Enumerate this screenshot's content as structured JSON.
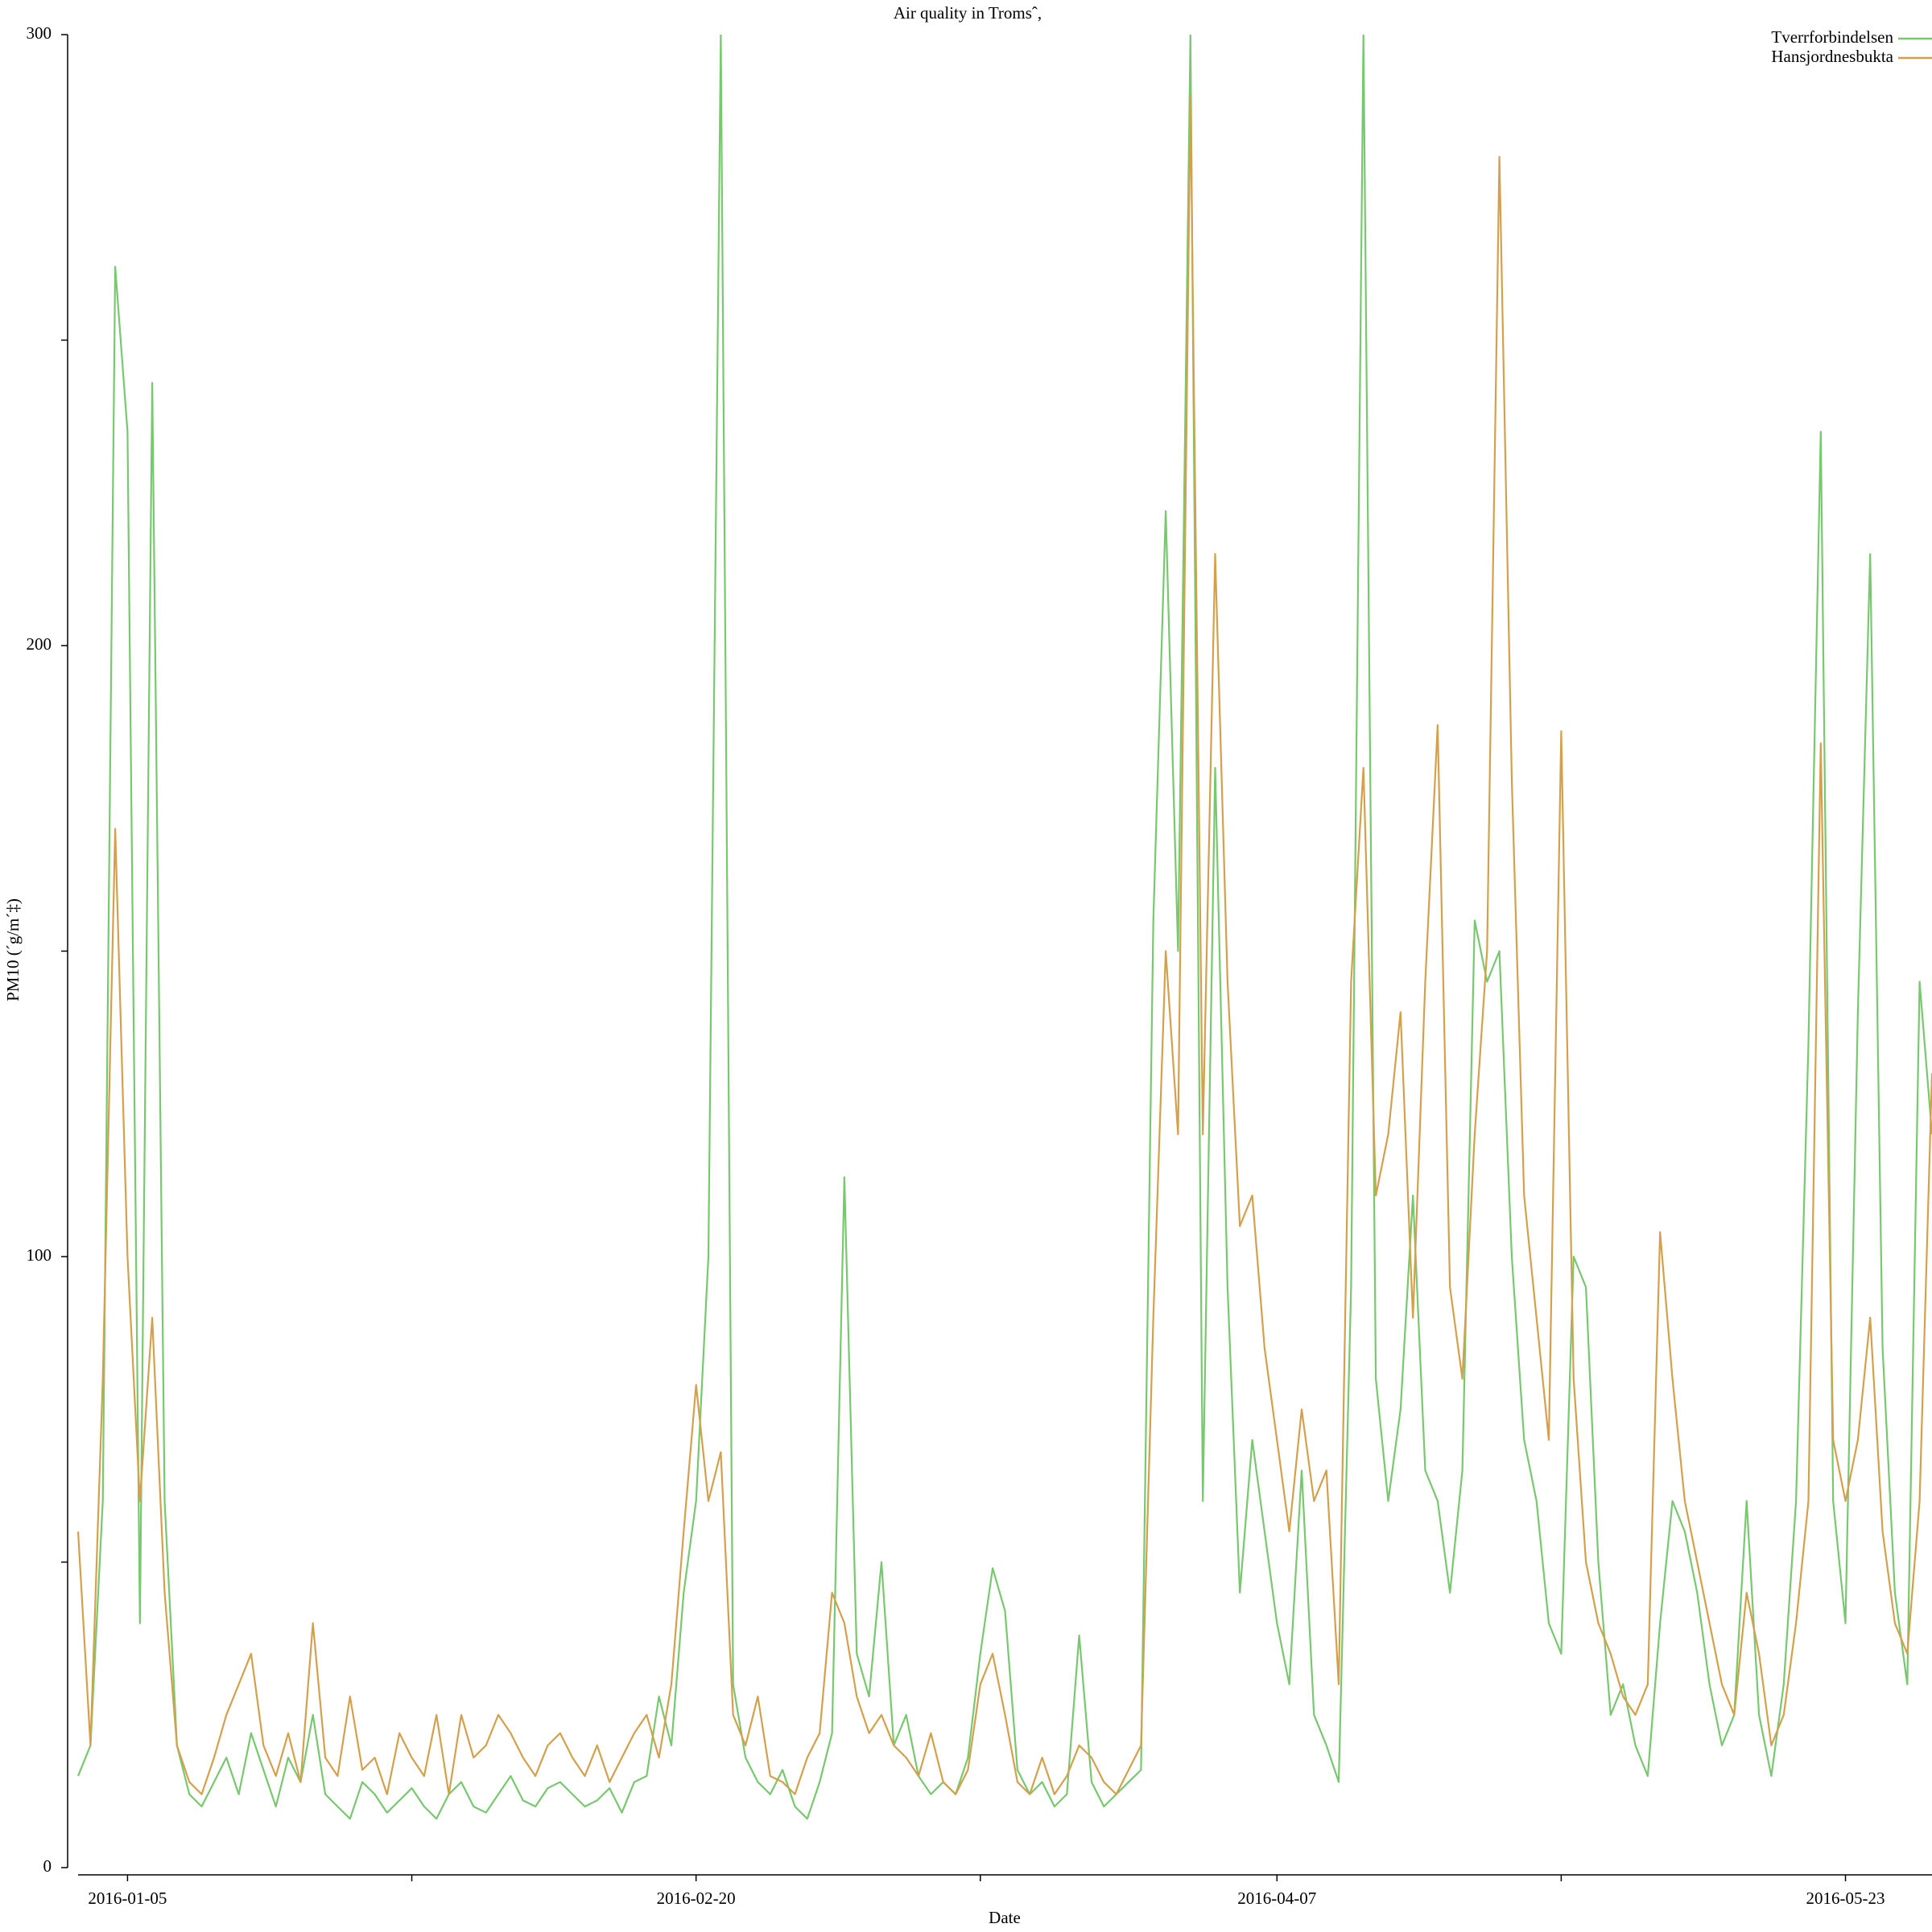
{
  "chart_data": {
    "type": "line",
    "title": "Air quality in Tromsˆ,",
    "x_label": "Date",
    "y_label": "PM10 (´g/m´‡)",
    "legend": "top-right",
    "xlim": [
      "2016-01-01",
      "2016-05-30"
    ],
    "ylim": [
      0,
      300
    ],
    "yticks": [
      0,
      {
        "value": 50,
        "label": null
      },
      100,
      {
        "value": 150,
        "label": null
      },
      200,
      {
        "value": 250,
        "label": null
      },
      300
    ],
    "xticks": [
      "2016-01-05",
      {
        "value": "2016-01-28",
        "label": null
      },
      "2016-02-20",
      {
        "value": "2016-03-14",
        "label": null
      },
      "2016-04-07",
      {
        "value": "2016-04-30",
        "label": null
      },
      "2016-05-23"
    ],
    "x": [
      "2016-01-01",
      "2016-01-02",
      "2016-01-03",
      "2016-01-04",
      "2016-01-05",
      "2016-01-06",
      "2016-01-07",
      "2016-01-08",
      "2016-01-09",
      "2016-01-10",
      "2016-01-11",
      "2016-01-12",
      "2016-01-13",
      "2016-01-14",
      "2016-01-15",
      "2016-01-16",
      "2016-01-17",
      "2016-01-18",
      "2016-01-19",
      "2016-01-20",
      "2016-01-21",
      "2016-01-22",
      "2016-01-23",
      "2016-01-24",
      "2016-01-25",
      "2016-01-26",
      "2016-01-27",
      "2016-01-28",
      "2016-01-29",
      "2016-01-30",
      "2016-01-31",
      "2016-02-01",
      "2016-02-02",
      "2016-02-03",
      "2016-02-04",
      "2016-02-05",
      "2016-02-06",
      "2016-02-07",
      "2016-02-08",
      "2016-02-09",
      "2016-02-10",
      "2016-02-11",
      "2016-02-12",
      "2016-02-13",
      "2016-02-14",
      "2016-02-15",
      "2016-02-16",
      "2016-02-17",
      "2016-02-18",
      "2016-02-19",
      "2016-02-20",
      "2016-02-21",
      "2016-02-22",
      "2016-02-23",
      "2016-02-24",
      "2016-02-25",
      "2016-02-26",
      "2016-02-27",
      "2016-02-28",
      "2016-02-29",
      "2016-03-01",
      "2016-03-02",
      "2016-03-03",
      "2016-03-04",
      "2016-03-05",
      "2016-03-06",
      "2016-03-07",
      "2016-03-08",
      "2016-03-09",
      "2016-03-10",
      "2016-03-11",
      "2016-03-12",
      "2016-03-13",
      "2016-03-14",
      "2016-03-15",
      "2016-03-16",
      "2016-03-17",
      "2016-03-18",
      "2016-03-19",
      "2016-03-20",
      "2016-03-21",
      "2016-03-22",
      "2016-03-23",
      "2016-03-24",
      "2016-03-25",
      "2016-03-26",
      "2016-03-27",
      "2016-03-28",
      "2016-03-29",
      "2016-03-30",
      "2016-03-31",
      "2016-04-01",
      "2016-04-02",
      "2016-04-03",
      "2016-04-04",
      "2016-04-05",
      "2016-04-06",
      "2016-04-07",
      "2016-04-08",
      "2016-04-09",
      "2016-04-10",
      "2016-04-11",
      "2016-04-12",
      "2016-04-13",
      "2016-04-14",
      "2016-04-15",
      "2016-04-16",
      "2016-04-17",
      "2016-04-18",
      "2016-04-19",
      "2016-04-20",
      "2016-04-21",
      "2016-04-22",
      "2016-04-23",
      "2016-04-24",
      "2016-04-25",
      "2016-04-26",
      "2016-04-27",
      "2016-04-28",
      "2016-04-29",
      "2016-04-30",
      "2016-05-01",
      "2016-05-02",
      "2016-05-03",
      "2016-05-04",
      "2016-05-05",
      "2016-05-06",
      "2016-05-07",
      "2016-05-08",
      "2016-05-09",
      "2016-05-10",
      "2016-05-11",
      "2016-05-12",
      "2016-05-13",
      "2016-05-14",
      "2016-05-15",
      "2016-05-16",
      "2016-05-17",
      "2016-05-18",
      "2016-05-19",
      "2016-05-20",
      "2016-05-21",
      "2016-05-22",
      "2016-05-23",
      "2016-05-24",
      "2016-05-25",
      "2016-05-26",
      "2016-05-27",
      "2016-05-28",
      "2016-05-29",
      "2016-05-30"
    ],
    "series": [
      {
        "name": "Tverrforbindelsen",
        "color": "#77c86e",
        "values": [
          15,
          20,
          60,
          262,
          235,
          40,
          243,
          60,
          20,
          12,
          10,
          14,
          18,
          12,
          22,
          16,
          10,
          18,
          14,
          25,
          12,
          10,
          8,
          14,
          12,
          9,
          11,
          13,
          10,
          8,
          12,
          14,
          10,
          9,
          12,
          15,
          11,
          10,
          13,
          14,
          12,
          10,
          11,
          13,
          9,
          14,
          15,
          28,
          20,
          45,
          60,
          100,
          300,
          30,
          18,
          14,
          12,
          16,
          10,
          8,
          14,
          22,
          113,
          35,
          28,
          50,
          20,
          25,
          15,
          12,
          14,
          12,
          18,
          35,
          49,
          42,
          16,
          12,
          14,
          10,
          12,
          38,
          14,
          10,
          12,
          14,
          16,
          155,
          222,
          150,
          300,
          60,
          180,
          95,
          45,
          70,
          55,
          40,
          30,
          65,
          25,
          20,
          14,
          95,
          300,
          80,
          60,
          75,
          110,
          65,
          60,
          45,
          65,
          155,
          145,
          150,
          100,
          70,
          60,
          40,
          35,
          100,
          95,
          50,
          25,
          30,
          20,
          15,
          40,
          60,
          55,
          45,
          30,
          20,
          25,
          60,
          25,
          15,
          30,
          60,
          135,
          235,
          60,
          40,
          140,
          215,
          85,
          45,
          30,
          145,
          120
        ]
      },
      {
        "name": "Hansjordnesbukta",
        "color": "#d4a04c",
        "values": [
          55,
          20,
          80,
          170,
          100,
          60,
          90,
          45,
          20,
          14,
          12,
          18,
          25,
          30,
          35,
          20,
          15,
          22,
          14,
          40,
          18,
          15,
          28,
          16,
          18,
          12,
          22,
          18,
          15,
          25,
          12,
          25,
          18,
          20,
          25,
          22,
          18,
          15,
          20,
          22,
          18,
          15,
          20,
          14,
          18,
          22,
          25,
          18,
          30,
          55,
          79,
          60,
          68,
          25,
          20,
          28,
          15,
          14,
          12,
          18,
          22,
          45,
          40,
          28,
          22,
          25,
          20,
          18,
          15,
          22,
          14,
          12,
          16,
          30,
          35,
          25,
          14,
          12,
          18,
          12,
          15,
          20,
          18,
          14,
          12,
          16,
          20,
          90,
          150,
          120,
          290,
          120,
          215,
          145,
          105,
          110,
          85,
          70,
          55,
          75,
          60,
          65,
          30,
          145,
          180,
          110,
          120,
          140,
          90,
          145,
          187,
          95,
          80,
          120,
          150,
          280,
          178,
          110,
          90,
          70,
          186,
          80,
          50,
          40,
          35,
          28,
          25,
          30,
          104,
          80,
          60,
          50,
          40,
          30,
          25,
          45,
          35,
          20,
          25,
          40,
          60,
          184,
          70,
          60,
          70,
          90,
          55,
          40,
          35,
          60,
          130
        ]
      }
    ]
  }
}
